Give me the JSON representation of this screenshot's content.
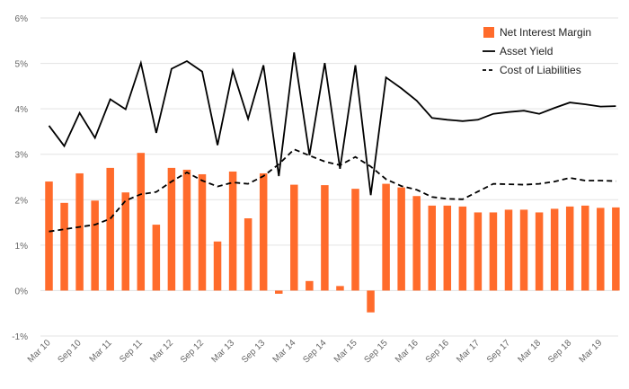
{
  "chart_data": {
    "type": "bar+line",
    "title": "",
    "xlabel": "",
    "ylabel": "",
    "ylim": [
      -1,
      6
    ],
    "yticks": [
      -1,
      0,
      1,
      2,
      3,
      4,
      5,
      6
    ],
    "ytick_labels": [
      "-1%",
      "0%",
      "1%",
      "2%",
      "3%",
      "4%",
      "5%",
      "6%"
    ],
    "categories": [
      "Mar 10",
      "Jun 10",
      "Sep 10",
      "Dec 10",
      "Mar 11",
      "Jun 11",
      "Sep 11",
      "Dec 11",
      "Mar 12",
      "Jun 12",
      "Sep 12",
      "Dec 12",
      "Mar 13",
      "Jun 13",
      "Sep 13",
      "Dec 13",
      "Mar 14",
      "Jun 14",
      "Sep 14",
      "Dec 14",
      "Mar 15",
      "Jun 15",
      "Sep 15",
      "Dec 15",
      "Mar 16",
      "Jun 16",
      "Sep 16",
      "Dec 16",
      "Mar 17",
      "Jun 17",
      "Sep 17",
      "Dec 17",
      "Mar 18",
      "Jun 18",
      "Sep 18",
      "Dec 18",
      "Mar 19",
      "Jun 19"
    ],
    "xtick_labels": [
      "Mar 10",
      "Sep 10",
      "Mar 11",
      "Sep 11",
      "Mar 12",
      "Sep 12",
      "Mar 13",
      "Sep 13",
      "Mar 14",
      "Sep 14",
      "Mar 15",
      "Sep 15",
      "Mar 16",
      "Sep 16",
      "Mar 17",
      "Sep 17",
      "Mar 18",
      "Sep 18",
      "Mar 19"
    ],
    "legend_position": "top-right",
    "series": [
      {
        "name": "Net Interest Margin",
        "kind": "bar",
        "color": "#ff6b2b",
        "values": [
          2.4,
          1.93,
          2.58,
          1.98,
          2.7,
          2.16,
          3.03,
          1.45,
          2.7,
          2.66,
          2.56,
          1.08,
          2.62,
          1.59,
          2.58,
          -0.07,
          2.33,
          0.21,
          2.32,
          0.1,
          2.24,
          -0.48,
          2.35,
          2.27,
          2.08,
          1.87,
          1.87,
          1.85,
          1.72,
          1.72,
          1.78,
          1.78,
          1.72,
          1.8,
          1.85,
          1.87,
          1.82,
          1.83
        ]
      },
      {
        "name": "Asset Yield",
        "kind": "line",
        "dash": "solid",
        "color": "#000000",
        "values": [
          3.63,
          3.18,
          3.91,
          3.36,
          4.21,
          3.99,
          5.01,
          3.47,
          4.88,
          5.05,
          4.82,
          3.2,
          4.84,
          3.78,
          4.96,
          2.52,
          5.24,
          2.98,
          5.01,
          2.68,
          4.96,
          2.1,
          4.69,
          4.45,
          4.18,
          3.8,
          3.76,
          3.73,
          3.76,
          3.89,
          3.93,
          3.96,
          3.89,
          4.02,
          4.14,
          4.1,
          4.05,
          4.06
        ]
      },
      {
        "name": "Cost of Liabilities",
        "kind": "line",
        "dash": "dashed",
        "color": "#000000",
        "values": [
          1.3,
          1.35,
          1.4,
          1.45,
          1.58,
          1.98,
          2.12,
          2.17,
          2.4,
          2.6,
          2.42,
          2.29,
          2.38,
          2.35,
          2.52,
          2.78,
          3.11,
          2.97,
          2.84,
          2.76,
          2.94,
          2.73,
          2.45,
          2.3,
          2.22,
          2.06,
          2.02,
          2.01,
          2.18,
          2.35,
          2.34,
          2.33,
          2.35,
          2.4,
          2.48,
          2.42,
          2.42,
          2.41
        ]
      }
    ]
  }
}
